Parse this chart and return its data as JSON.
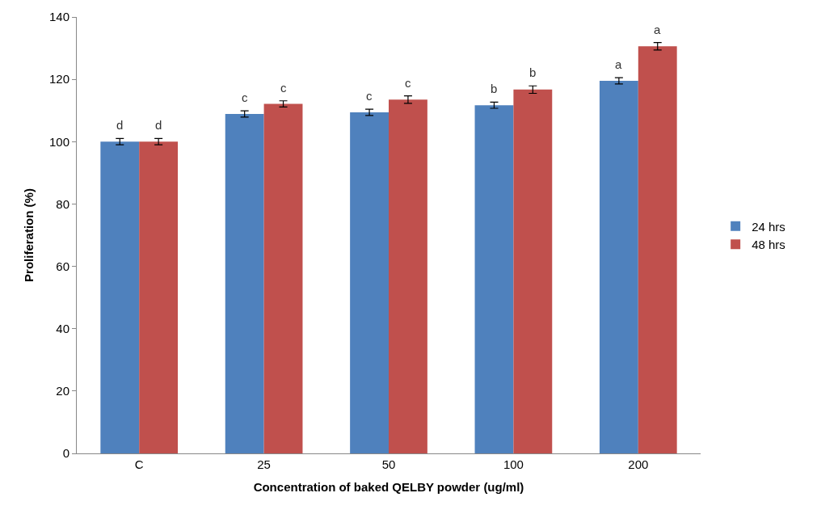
{
  "chart_data": {
    "type": "bar",
    "xlabel": "Concentration of baked QELBY powder (ug/ml)",
    "ylabel": "Proliferation (%)",
    "categories": [
      "C",
      "25",
      "50",
      "100",
      "200"
    ],
    "series": [
      {
        "name": "24 hrs",
        "color": "#4f81bd",
        "values": [
          100,
          108.9,
          109.4,
          111.7,
          119.5
        ],
        "errors": [
          1,
          1,
          1,
          1,
          1
        ],
        "value_labels": [
          "d",
          "c",
          "c",
          "b",
          "a"
        ]
      },
      {
        "name": "48 hrs",
        "color": "#c0504d",
        "values": [
          100,
          112.1,
          113.5,
          116.7,
          130.6
        ],
        "errors": [
          1,
          1,
          1.2,
          1.2,
          1.2
        ],
        "value_labels": [
          "d",
          "c",
          "c",
          "b",
          "a"
        ]
      }
    ],
    "ylim": [
      0,
      140
    ],
    "yticks": [
      0,
      20,
      40,
      60,
      80,
      100,
      120,
      140
    ],
    "legend": "right"
  }
}
